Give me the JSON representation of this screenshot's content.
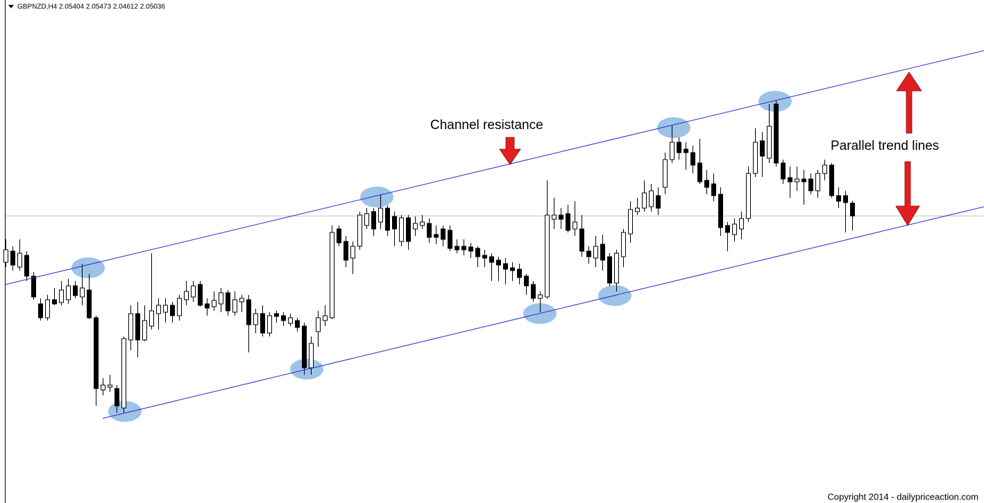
{
  "chart_data": {
    "type": "candlestick",
    "title": "GBPNZD,H4 2.05404 2.05473 2.04612 2.05036",
    "annotations": [
      "Channel resistance",
      "Parallel trend lines"
    ],
    "footer": "Copyright 2014 - dailypriceaction.com",
    "ylim": [
      1.9676,
      2.1126
    ],
    "up_color": "#ffffff",
    "down_color": "#000000",
    "open": [
      2.037,
      2.0402,
      2.0356,
      2.039,
      2.033,
      2.025,
      2.021,
      2.0262,
      2.0254,
      2.0262,
      2.0302,
      2.027,
      2.029,
      2.021,
      2.0002,
      2.001,
      2.0006,
      1.995,
      2.0146,
      2.0222,
      2.0146,
      2.0186,
      2.0222,
      2.0226,
      2.0246,
      2.0216,
      2.0262,
      2.027,
      2.0306,
      2.025,
      2.0242,
      2.025,
      2.0282,
      2.0226,
      2.0256,
      2.0262,
      2.019,
      2.0222,
      2.0166,
      2.0222,
      2.0216,
      2.0194,
      2.0202,
      2.0186,
      2.0066,
      2.017,
      2.0202,
      2.021,
      2.0466,
      2.043,
      2.0382,
      2.0416,
      2.0476,
      2.0516,
      2.0486,
      2.0526,
      2.0502,
      2.043,
      2.0498,
      2.0466,
      2.0476,
      2.0482,
      2.045,
      2.0466,
      2.0462,
      2.0416,
      2.0416,
      2.0414,
      2.041,
      2.039,
      2.0386,
      2.0376,
      2.0366,
      2.0354,
      2.035,
      2.033,
      2.0306,
      2.0266,
      2.027,
      2.0494,
      2.0506,
      2.051,
      2.0466,
      2.0466,
      2.0402,
      2.0382,
      2.0422,
      2.0386,
      2.031,
      2.0386,
      2.0452,
      2.0516,
      2.0526,
      2.053,
      2.0562,
      2.0586,
      2.0666,
      2.0716,
      2.0696,
      2.0686,
      2.0656,
      2.0606,
      2.0596,
      2.0566,
      2.0476,
      2.045,
      2.0466,
      2.0496,
      2.0626,
      2.072,
      2.067,
      2.0826,
      2.0656,
      2.0614,
      2.0602,
      2.061,
      2.061,
      2.0576,
      2.0626,
      2.065,
      2.0562,
      2.0562,
      2.05404
    ],
    "high": [
      2.0436,
      2.0416,
      2.0436,
      2.0402,
      2.0342,
      2.0266,
      2.0276,
      2.0296,
      2.0316,
      2.0322,
      2.0316,
      2.0366,
      2.0336,
      2.0216,
      2.0036,
      2.0046,
      2.0016,
      2.0156,
      2.0246,
      2.0256,
      2.0246,
      2.0396,
      2.0266,
      2.0266,
      2.0256,
      2.0276,
      2.0316,
      2.0316,
      2.0316,
      2.0266,
      2.0286,
      2.0296,
      2.029,
      2.0286,
      2.0276,
      2.0276,
      2.0236,
      2.0246,
      2.0226,
      2.023,
      2.0226,
      2.0222,
      2.021,
      2.0196,
      2.0156,
      2.023,
      2.0246,
      2.0476,
      2.0476,
      2.0446,
      2.043,
      2.0516,
      2.0526,
      2.0526,
      2.0566,
      2.0534,
      2.0516,
      2.0506,
      2.0506,
      2.0502,
      2.0506,
      2.0496,
      2.0476,
      2.0476,
      2.0476,
      2.0436,
      2.0436,
      2.0426,
      2.0416,
      2.0406,
      2.0396,
      2.0386,
      2.0382,
      2.037,
      2.0366,
      2.0336,
      2.0316,
      2.0286,
      2.0606,
      2.0556,
      2.0526,
      2.0536,
      2.0546,
      2.0506,
      2.0416,
      2.0446,
      2.045,
      2.0396,
      2.0406,
      2.0466,
      2.0546,
      2.0556,
      2.0606,
      2.0596,
      2.0586,
      2.0686,
      2.0766,
      2.073,
      2.0716,
      2.0706,
      2.0726,
      2.0636,
      2.0626,
      2.0586,
      2.0486,
      2.0496,
      2.0516,
      2.0646,
      2.0756,
      2.0746,
      2.0826,
      2.0836,
      2.0666,
      2.0646,
      2.0646,
      2.0636,
      2.0626,
      2.0636,
      2.0666,
      2.0656,
      2.0586,
      2.0576,
      2.05473
    ],
    "low": [
      2.0356,
      2.0346,
      2.0346,
      2.0316,
      2.0262,
      2.0202,
      2.0202,
      2.0246,
      2.0246,
      2.025,
      2.0266,
      2.0246,
      2.0206,
      1.9956,
      1.9986,
      1.9996,
      1.9936,
      1.9936,
      2.0116,
      2.0096,
      2.0142,
      2.0176,
      2.0176,
      2.0196,
      2.0196,
      2.0202,
      2.0246,
      2.0256,
      2.0242,
      2.0216,
      2.023,
      2.0226,
      2.0216,
      2.0216,
      2.0226,
      2.011,
      2.0166,
      2.0156,
      2.0156,
      2.0196,
      2.0186,
      2.0186,
      2.017,
      2.0046,
      2.0046,
      2.0126,
      2.0186,
      2.0206,
      2.0416,
      2.0356,
      2.0336,
      2.0406,
      2.0466,
      2.0446,
      2.0466,
      2.0446,
      2.0416,
      2.0416,
      2.0406,
      2.0446,
      2.0466,
      2.0426,
      2.0422,
      2.0416,
      2.0402,
      2.0396,
      2.039,
      2.0382,
      2.0356,
      2.0356,
      2.0316,
      2.0316,
      2.0306,
      2.0316,
      2.0306,
      2.0276,
      2.0256,
      2.0226,
      2.0266,
      2.0466,
      2.0466,
      2.0456,
      2.0446,
      2.0386,
      2.0366,
      2.0356,
      2.0346,
      2.0302,
      2.0286,
      2.0356,
      2.0426,
      2.0506,
      2.0516,
      2.0516,
      2.0506,
      2.0566,
      2.0656,
      2.0666,
      2.0636,
      2.0626,
      2.0596,
      2.0566,
      2.0546,
      2.0446,
      2.0402,
      2.043,
      2.0436,
      2.0486,
      2.0616,
      2.0616,
      2.0656,
      2.0646,
      2.0596,
      2.0556,
      2.0576,
      2.0536,
      2.0566,
      2.0556,
      2.0606,
      2.0556,
      2.0526,
      2.0456,
      2.04612
    ],
    "close": [
      2.0406,
      2.0362,
      2.0396,
      2.033,
      2.027,
      2.021,
      2.0262,
      2.025,
      2.029,
      2.0302,
      2.0274,
      2.0296,
      2.021,
      2.0006,
      2.0016,
      2.0016,
      1.9956,
      2.015,
      2.0222,
      2.0146,
      2.0202,
      2.023,
      2.0246,
      2.0246,
      2.0216,
      2.0266,
      2.0286,
      2.0302,
      2.0246,
      2.0238,
      2.026,
      2.0282,
      2.023,
      2.0262,
      2.0266,
      2.019,
      2.0222,
      2.0166,
      2.0216,
      2.0214,
      2.0202,
      2.021,
      2.0182,
      2.0066,
      2.0136,
      2.021,
      2.0216,
      2.0456,
      2.0426,
      2.0376,
      2.0416,
      2.0506,
      2.051,
      2.0466,
      2.0526,
      2.0462,
      2.0466,
      2.0498,
      2.043,
      2.0482,
      2.0486,
      2.0442,
      2.0442,
      2.0436,
      2.041,
      2.0406,
      2.0406,
      2.0402,
      2.0386,
      2.0382,
      2.037,
      2.0362,
      2.035,
      2.0346,
      2.0326,
      2.0302,
      2.0266,
      2.0276,
      2.0506,
      2.0506,
      2.0494,
      2.0462,
      2.0486,
      2.0402,
      2.0386,
      2.0416,
      2.0376,
      2.031,
      2.0396,
      2.0456,
      2.0522,
      2.0526,
      2.057,
      2.0576,
      2.0526,
      2.0666,
      2.0716,
      2.0686,
      2.0686,
      2.065,
      2.0602,
      2.0586,
      2.0562,
      2.047,
      2.0456,
      2.048,
      2.0496,
      2.0626,
      2.0716,
      2.0676,
      2.0762,
      2.0656,
      2.061,
      2.0602,
      2.061,
      2.0602,
      2.0576,
      2.0626,
      2.065,
      2.0562,
      2.0546,
      2.0542,
      2.05036
    ]
  }
}
